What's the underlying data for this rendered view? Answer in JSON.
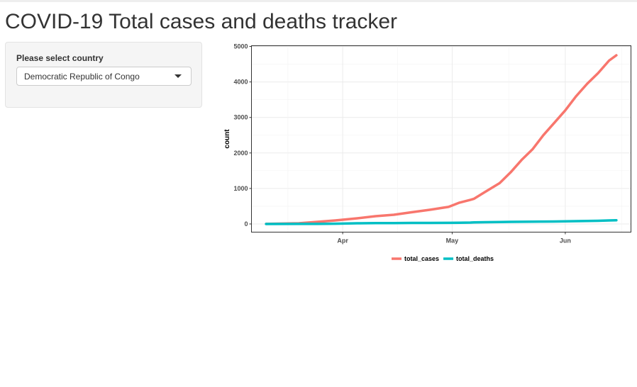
{
  "page": {
    "title": "COVID-19 Total cases and deaths tracker"
  },
  "sidebar": {
    "select_label": "Please select country",
    "select_value": "Democratic Republic of Congo"
  },
  "chart_data": {
    "type": "line",
    "title": "",
    "xlabel": "",
    "ylabel": "count",
    "x_tick_labels": [
      "Apr",
      "May",
      "Jun"
    ],
    "y_ticks": [
      0,
      1000,
      2000,
      3000,
      4000,
      5000
    ],
    "ylim": [
      -230,
      5020
    ],
    "xlim": [
      "2020-03-07",
      "2020-06-19"
    ],
    "grid": true,
    "legend_position": "bottom",
    "x": [
      "2020-03-11",
      "2020-03-20",
      "2020-03-25",
      "2020-03-30",
      "2020-04-05",
      "2020-04-10",
      "2020-04-15",
      "2020-04-20",
      "2020-04-25",
      "2020-04-30",
      "2020-05-03",
      "2020-05-06",
      "2020-05-07",
      "2020-05-10",
      "2020-05-14",
      "2020-05-17",
      "2020-05-20",
      "2020-05-23",
      "2020-05-26",
      "2020-05-29",
      "2020-06-01",
      "2020-06-04",
      "2020-06-07",
      "2020-06-10",
      "2020-06-13",
      "2020-06-15"
    ],
    "series": [
      {
        "name": "total_cases",
        "color": "#F8766D",
        "values": [
          1,
          20,
          60,
          100,
          160,
          220,
          260,
          330,
          400,
          480,
          600,
          680,
          710,
          900,
          1150,
          1450,
          1800,
          2100,
          2500,
          2850,
          3200,
          3600,
          3950,
          4250,
          4600,
          4750
        ]
      },
      {
        "name": "total_deaths",
        "color": "#00BFC4",
        "values": [
          0,
          1,
          2,
          8,
          20,
          25,
          25,
          30,
          30,
          32,
          35,
          40,
          45,
          50,
          55,
          60,
          62,
          65,
          68,
          70,
          75,
          80,
          85,
          90,
          100,
          105
        ]
      }
    ]
  }
}
